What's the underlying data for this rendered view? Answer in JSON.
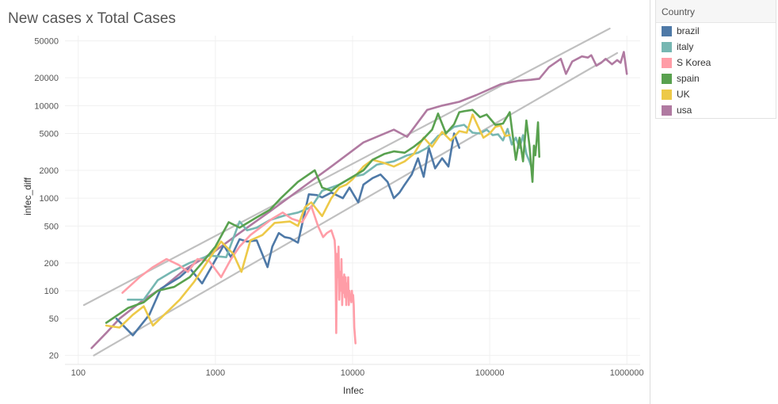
{
  "chart_data": {
    "type": "line",
    "title": "New cases x Total Cases",
    "xlabel": "Infec",
    "ylabel": "infec_diff",
    "xscale": "log",
    "yscale": "log",
    "xlim": [
      80,
      1250000
    ],
    "ylim": [
      16,
      57000
    ],
    "x_ticks": [
      100,
      1000,
      10000,
      100000,
      1000000
    ],
    "x_tick_labels": [
      "100",
      "1000",
      "10000",
      "100000",
      "1000000"
    ],
    "y_ticks": [
      20,
      50,
      100,
      200,
      500,
      1000,
      2000,
      5000,
      10000,
      20000,
      50000
    ],
    "y_tick_labels": [
      "20",
      "50",
      "100",
      "200",
      "500",
      "1000",
      "2000",
      "5000",
      "10000",
      "20000",
      "50000"
    ],
    "grid": true,
    "legend": {
      "title": "Country",
      "position": "right",
      "items": [
        {
          "name": "brazil",
          "color": "#4e79a7"
        },
        {
          "name": "italy",
          "color": "#76b7b2"
        },
        {
          "name": "S Korea",
          "color": "#ff9da7"
        },
        {
          "name": "spain",
          "color": "#59a14f"
        },
        {
          "name": "UK",
          "color": "#edc948"
        },
        {
          "name": "usa",
          "color": "#b07aa1"
        }
      ]
    },
    "reference_lines": {
      "color": "#c0c0c0",
      "lines": [
        {
          "x": [
            110,
            750000
          ],
          "y": [
            70,
            68000
          ]
        },
        {
          "x": [
            130,
            850000
          ],
          "y": [
            20,
            37000
          ]
        }
      ]
    },
    "series": [
      {
        "name": "usa",
        "color": "#b07aa1",
        "x": [
          125,
          160,
          200,
          300,
          420,
          600,
          1000,
          1500,
          2500,
          4000,
          7000,
          12000,
          20000,
          25000,
          35000,
          45000,
          60000,
          80000,
          120000,
          160000,
          200000,
          230000,
          270000,
          330000,
          360000,
          400000,
          470000,
          520000,
          550000,
          600000,
          650000,
          700000,
          780000,
          850000,
          900000,
          950000,
          1000000
        ],
        "y": [
          24,
          35,
          50,
          80,
          110,
          170,
          270,
          420,
          720,
          1200,
          2200,
          4000,
          5500,
          4600,
          9000,
          10000,
          11000,
          13000,
          17000,
          18500,
          19000,
          19500,
          26000,
          32000,
          22000,
          30000,
          34000,
          33000,
          35000,
          27000,
          29000,
          32000,
          28000,
          31000,
          29000,
          38000,
          22000
        ]
      },
      {
        "name": "brazil",
        "color": "#4e79a7",
        "x": [
          190,
          250,
          330,
          400,
          550,
          650,
          800,
          1000,
          1150,
          1300,
          1500,
          1700,
          2000,
          2400,
          2600,
          2900,
          3200,
          3500,
          4000,
          4800,
          5500,
          6000,
          7000,
          8500,
          9500,
          11000,
          12000,
          14000,
          16000,
          18000,
          20000,
          22000,
          24000,
          27000,
          30000,
          33000,
          36000,
          40000,
          45000,
          50000,
          55000,
          60000
        ],
        "y": [
          50,
          33,
          55,
          105,
          140,
          175,
          120,
          215,
          310,
          230,
          360,
          340,
          350,
          180,
          300,
          420,
          380,
          370,
          330,
          1100,
          1080,
          1020,
          1150,
          1000,
          1300,
          900,
          1400,
          1650,
          1800,
          1500,
          1000,
          1150,
          1400,
          1800,
          2700,
          1700,
          3500,
          2100,
          2700,
          2200,
          5000,
          3500
        ]
      },
      {
        "name": "italy",
        "color": "#76b7b2",
        "x": [
          230,
          300,
          380,
          480,
          650,
          900,
          1200,
          1500,
          1700,
          2000,
          2500,
          3200,
          4000,
          5000,
          6000,
          8000,
          10000,
          12000,
          15000,
          20000,
          25000,
          30000,
          35000,
          42000,
          50000,
          55000,
          65000,
          75000,
          85000,
          95000,
          105000,
          115000,
          125000,
          135000,
          145000,
          155000,
          165000,
          175000,
          185000,
          195000,
          205000
        ],
        "y": [
          80,
          80,
          130,
          160,
          200,
          240,
          230,
          560,
          450,
          480,
          580,
          650,
          700,
          800,
          1200,
          1400,
          1700,
          1800,
          2300,
          2500,
          2900,
          3100,
          3500,
          4700,
          5300,
          5900,
          6200,
          5100,
          5000,
          5500,
          4800,
          4900,
          4200,
          5600,
          3800,
          4500,
          3500,
          4800,
          3000,
          2500,
          2000
        ]
      },
      {
        "name": "S Korea",
        "color": "#ff9da7",
        "x": [
          210,
          280,
          350,
          440,
          540,
          630,
          740,
          900,
          1100,
          1300,
          1500,
          1800,
          2200,
          2600,
          3100,
          3600,
          4300,
          5000,
          5600,
          6100,
          6500,
          7000,
          7400,
          7500,
          7600,
          7700,
          7800,
          7900,
          8000,
          8100,
          8200,
          8300,
          8400,
          8500,
          8600,
          8700,
          8800,
          8900,
          9000,
          9100,
          9200,
          9300,
          9400,
          9500,
          9600,
          9700,
          9800,
          9900,
          10000,
          10100,
          10200,
          10300,
          10500
        ],
        "y": [
          95,
          140,
          180,
          220,
          190,
          160,
          220,
          210,
          140,
          220,
          300,
          400,
          500,
          600,
          700,
          600,
          550,
          820,
          500,
          380,
          420,
          450,
          350,
          250,
          35,
          250,
          140,
          300,
          80,
          160,
          100,
          220,
          70,
          140,
          95,
          150,
          85,
          140,
          70,
          120,
          90,
          140,
          70,
          100,
          80,
          90,
          75,
          100,
          80,
          90,
          70,
          40,
          27
        ]
      },
      {
        "name": "spain",
        "color": "#59a14f",
        "x": [
          160,
          230,
          300,
          380,
          500,
          650,
          800,
          1000,
          1250,
          1500,
          2000,
          2500,
          3000,
          4000,
          5300,
          6000,
          7000,
          8000,
          10000,
          12000,
          14000,
          17000,
          20000,
          24000,
          28000,
          32000,
          38000,
          42000,
          48000,
          55000,
          60000,
          65000,
          75000,
          85000,
          95000,
          110000,
          125000,
          140000,
          155000,
          165000,
          175000,
          185000,
          195000,
          205000,
          210000,
          215000,
          220000,
          225000,
          230000
        ],
        "y": [
          45,
          65,
          75,
          100,
          110,
          140,
          200,
          300,
          550,
          480,
          620,
          750,
          1000,
          1500,
          2000,
          1300,
          1200,
          1400,
          1700,
          2000,
          2600,
          3000,
          3200,
          3100,
          3600,
          4200,
          5500,
          8200,
          5000,
          6300,
          8500,
          8700,
          9000,
          7500,
          8000,
          6200,
          6400,
          8500,
          2600,
          4500,
          2500,
          6900,
          3700,
          1500,
          3700,
          2900,
          4200,
          6600,
          2800
        ]
      },
      {
        "name": "UK",
        "color": "#edc948",
        "x": [
          160,
          200,
          250,
          300,
          350,
          450,
          550,
          700,
          900,
          1100,
          1350,
          1550,
          1800,
          2200,
          2700,
          3500,
          4000,
          4500,
          5000,
          6000,
          7000,
          8000,
          9000,
          10000,
          12000,
          14000,
          17000,
          20000,
          24000,
          28000,
          33000,
          38000,
          45000,
          52000,
          60000,
          68000,
          75000,
          82000,
          90000,
          100000,
          110000,
          120000,
          130000,
          140000
        ],
        "y": [
          42,
          40,
          55,
          68,
          42,
          60,
          80,
          125,
          220,
          340,
          250,
          160,
          350,
          400,
          540,
          560,
          500,
          800,
          900,
          640,
          1000,
          1300,
          1400,
          1600,
          2200,
          2600,
          2400,
          2200,
          2500,
          3000,
          4500,
          3600,
          5200,
          4200,
          5300,
          5100,
          8000,
          6000,
          4500,
          5000,
          5900,
          6100,
          4700,
          4800
        ]
      }
    ]
  }
}
